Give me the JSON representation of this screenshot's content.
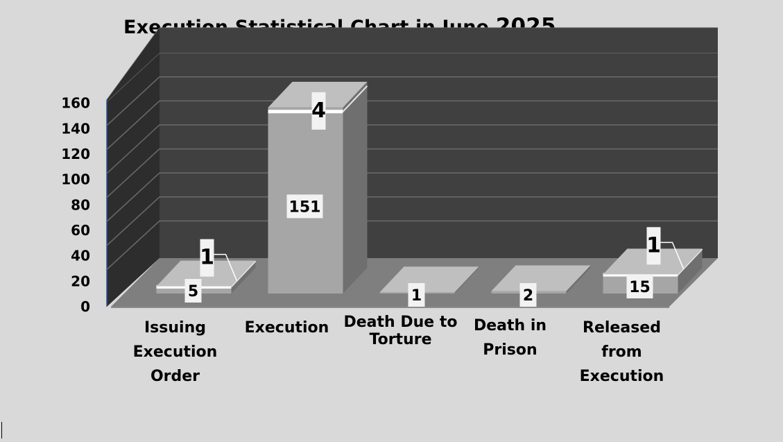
{
  "chart_data": {
    "type": "bar",
    "title": "Execution Statistical Chart in June",
    "title_year": "2025",
    "categories": [
      "Issuing\nExecution\nOrder",
      "Execution",
      "Death Due to\nTorture",
      "Death in\nPrison",
      "Released\nfrom\nExecution"
    ],
    "stacked": true,
    "series": [
      {
        "values": [
          5,
          151,
          1,
          2,
          15
        ]
      },
      {
        "values": [
          1,
          4,
          0,
          0,
          1
        ]
      }
    ],
    "data_labels": [
      [
        "5",
        "151",
        "1",
        "2",
        "15"
      ],
      [
        "1",
        "4",
        "",
        "",
        "1"
      ]
    ],
    "y_ticks": [
      "0",
      "20",
      "40",
      "60",
      "80",
      "100",
      "120",
      "140",
      "160"
    ],
    "ylim": [
      0,
      160
    ],
    "grid": true,
    "legend": "none",
    "colors": {
      "background": "#d9d9d9",
      "back_wall": "#404040",
      "side_wall": "#2d2d2d",
      "floor": "#7f7f7f",
      "bar_front": "#a6a6a6",
      "bar_top": "#bfbfbf",
      "bar_side": "#6f6f6f",
      "gridline": "#6b6b6b"
    }
  }
}
